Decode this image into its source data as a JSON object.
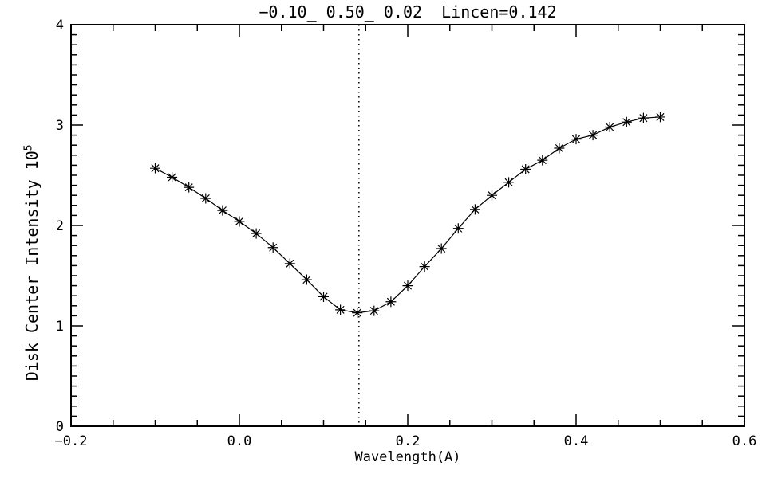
{
  "window": {
    "background": "#ffffff"
  },
  "chart_data": {
    "type": "line",
    "title": "−0.10_ 0.50_ 0.02  Lincen=0.142",
    "xlabel": "Wavelength(A)",
    "ylabel_base": "Disk Center Intensity 10",
    "ylabel_exponent": "5",
    "xlim": [
      -0.2,
      0.6
    ],
    "ylim": [
      0,
      4
    ],
    "grid": false,
    "legend": null,
    "marker": "asterisk",
    "line_style": "solid",
    "colors": {
      "axis": "#000000",
      "line": "#000000",
      "marker": "#000000",
      "vline": "#000000",
      "background": "#ffffff"
    },
    "x_ticks": {
      "values": [
        -0.2,
        0.0,
        0.2,
        0.4,
        0.6
      ],
      "labels": [
        "−0.2",
        "0.0",
        "0.2",
        "0.4",
        "0.6"
      ],
      "minor_step": 0.05
    },
    "y_ticks": {
      "values": [
        0,
        1,
        2,
        3,
        4
      ],
      "labels": [
        "0",
        "1",
        "2",
        "3",
        "4"
      ],
      "minor_step": 0.1
    },
    "vline": {
      "x": 0.142,
      "style": "dotted",
      "meaning": "Lincen"
    },
    "series": [
      {
        "name": "disk-center-intensity",
        "x": [
          -0.1,
          -0.08,
          -0.06,
          -0.04,
          -0.02,
          0.0,
          0.02,
          0.04,
          0.06,
          0.08,
          0.1,
          0.12,
          0.14,
          0.16,
          0.18,
          0.2,
          0.22,
          0.24,
          0.26,
          0.28,
          0.3,
          0.32,
          0.34,
          0.36,
          0.38,
          0.4,
          0.42,
          0.44,
          0.46,
          0.48,
          0.5
        ],
        "y": [
          2.57,
          2.48,
          2.38,
          2.27,
          2.15,
          2.04,
          1.92,
          1.78,
          1.62,
          1.46,
          1.29,
          1.16,
          1.13,
          1.15,
          1.24,
          1.4,
          1.59,
          1.77,
          1.97,
          2.16,
          2.3,
          2.43,
          2.56,
          2.65,
          2.77,
          2.86,
          2.9,
          2.98,
          3.03,
          3.07,
          3.08
        ]
      }
    ]
  }
}
